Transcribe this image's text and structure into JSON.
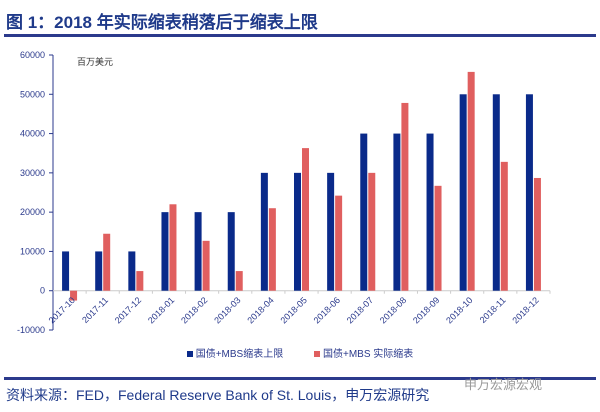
{
  "title": "图 1：2018 年实际缩表稍落后于缩表上限",
  "source": "资料来源：FED，Federal Reserve Bank of St. Louis，申万宏源研究",
  "watermark": "申万宏源宏观",
  "chart_data": {
    "type": "bar",
    "title": "图 1：2018 年实际缩表稍落后于缩表上限",
    "ylabel": "百万美元",
    "xlabel": "",
    "ylim": [
      -10000,
      60000
    ],
    "yticks": [
      -10000,
      0,
      10000,
      20000,
      30000,
      40000,
      50000,
      60000
    ],
    "legend_position": "bottom",
    "categories": [
      "2017-10",
      "2017-11",
      "2017-12",
      "2018-01",
      "2018-02",
      "2018-03",
      "2018-04",
      "2018-05",
      "2018-06",
      "2018-07",
      "2018-08",
      "2018-09",
      "2018-10",
      "2018-11",
      "2018-12"
    ],
    "series": [
      {
        "name": "国债+MBS缩表上限",
        "color": "#0a2a8a",
        "values": [
          10000,
          10000,
          10000,
          20000,
          20000,
          20000,
          30000,
          30000,
          30000,
          40000,
          40000,
          40000,
          50000,
          50000,
          50000
        ]
      },
      {
        "name": "国债+MBS 实际缩表",
        "color": "#e05f5f",
        "values": [
          -2500,
          14500,
          5000,
          22000,
          12700,
          5000,
          21000,
          36300,
          24200,
          30000,
          47800,
          26700,
          55700,
          32800,
          28700
        ]
      }
    ]
  }
}
